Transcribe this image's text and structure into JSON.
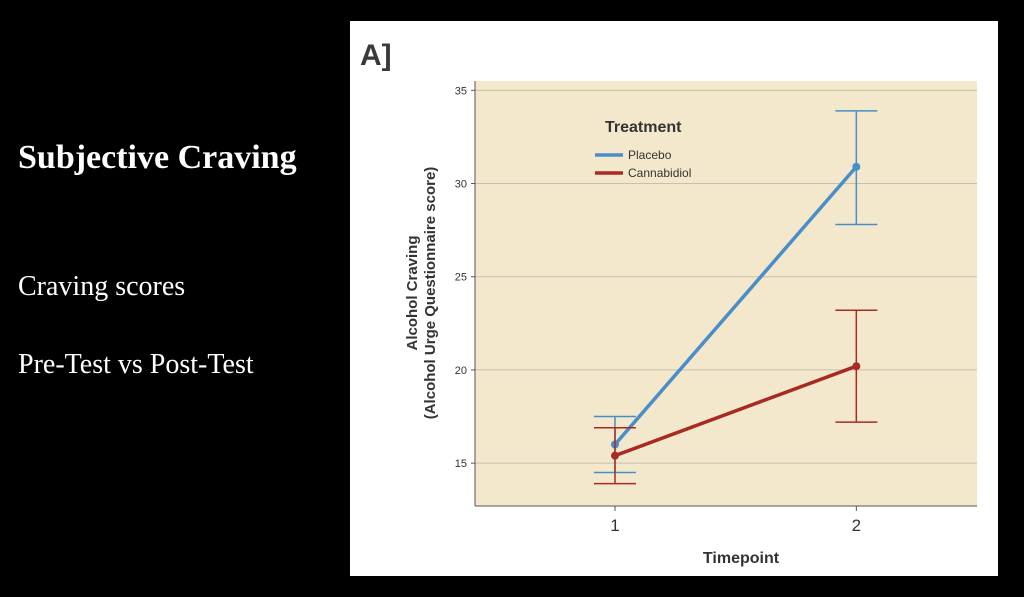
{
  "slide": {
    "title": "Subjective Craving",
    "point1": "Craving scores",
    "point2": "Pre-Test vs Post-Test"
  },
  "colors": {
    "plot_background": "#f3e8cc",
    "grid": "#c9bfae",
    "placebo": "#4a8ec8",
    "cannabidiol": "#a92a22"
  },
  "chart_data": {
    "type": "line",
    "panel_label": "A]",
    "title": "",
    "xlabel": "Timepoint",
    "ylabel_line1": "Alcohol Craving",
    "ylabel_line2": "(Alcohol Urge Questionnaire score)",
    "x": [
      1,
      2
    ],
    "x_tick_labels": [
      "1",
      "2"
    ],
    "xlim": [
      0.42,
      2.5
    ],
    "ylim": [
      12.7,
      35.5
    ],
    "y_ticks": [
      15,
      20,
      25,
      30,
      35
    ],
    "grid": true,
    "legend": {
      "title": "Treatment",
      "position": "top-left"
    },
    "series": [
      {
        "name": "Placebo",
        "color": "#4a8ec8",
        "values": [
          16.0,
          30.9
        ],
        "error_low": [
          14.5,
          27.8
        ],
        "error_high": [
          17.5,
          33.9
        ]
      },
      {
        "name": "Cannabidiol",
        "color": "#a92a22",
        "values": [
          15.4,
          20.2
        ],
        "error_low": [
          13.9,
          17.2
        ],
        "error_high": [
          16.9,
          23.2
        ]
      }
    ]
  }
}
